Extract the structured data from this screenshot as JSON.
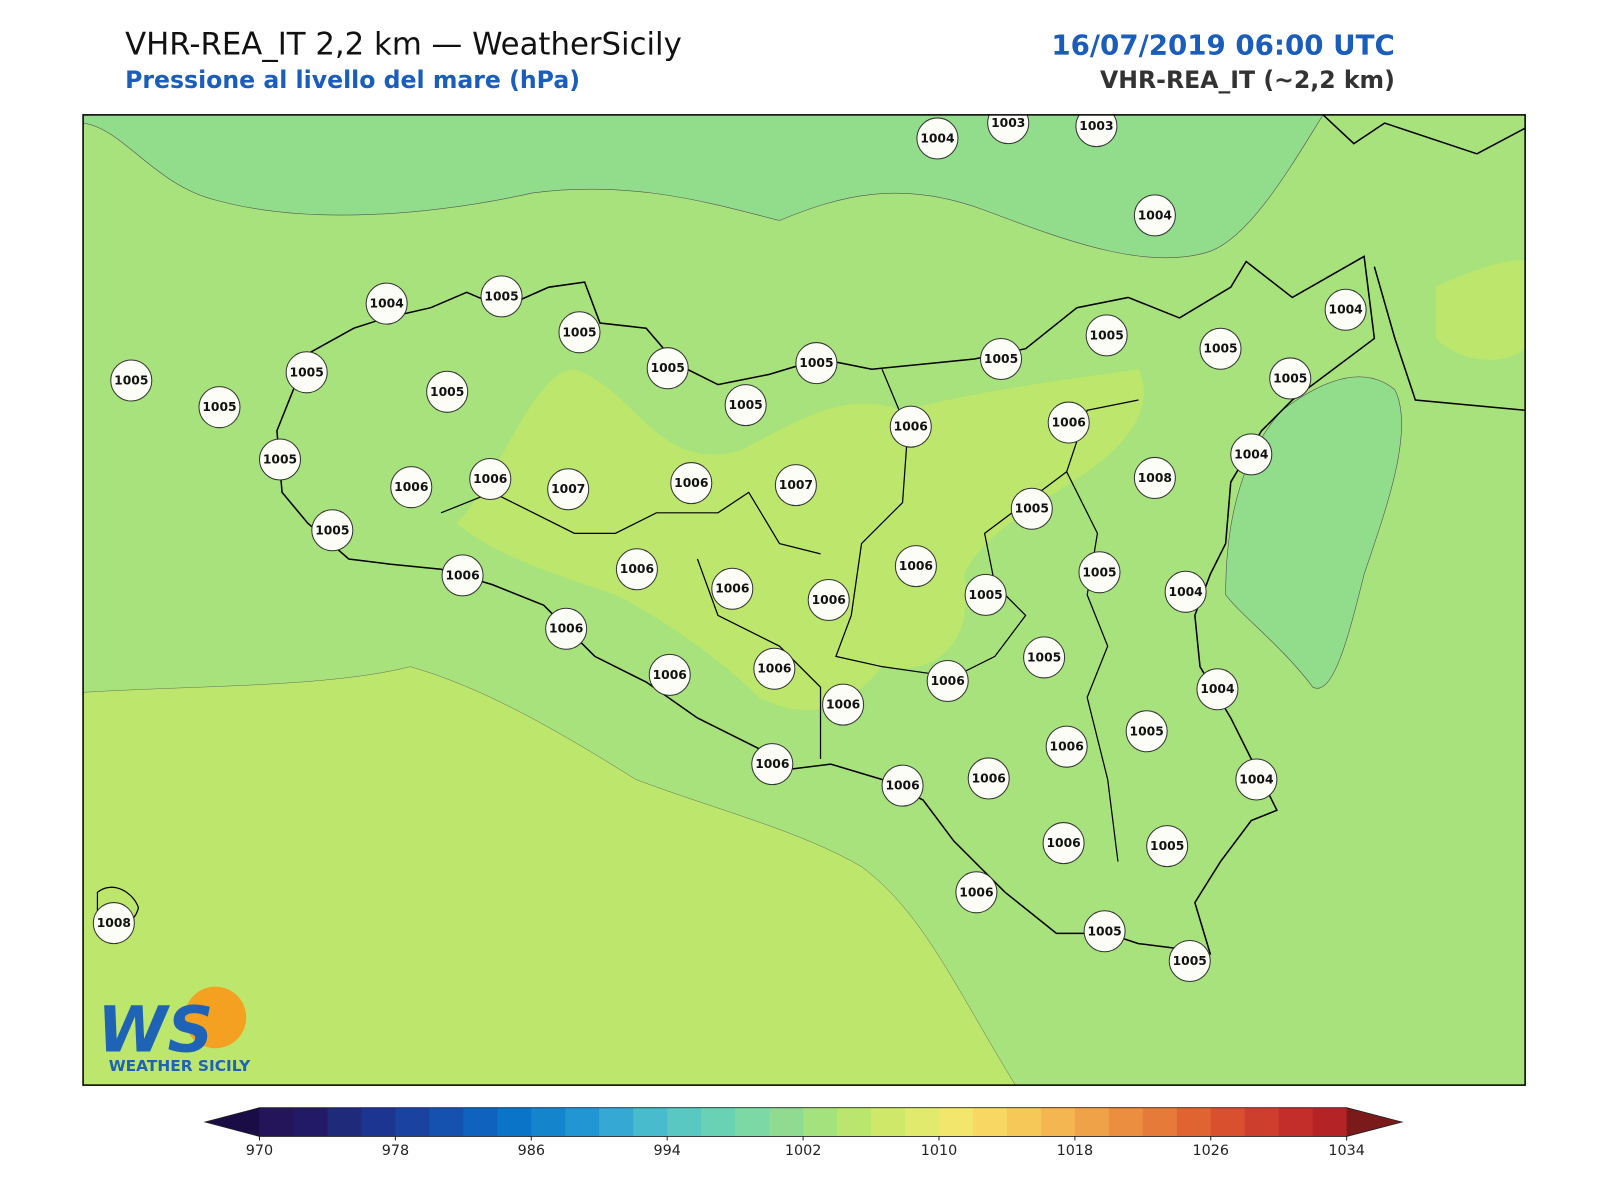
{
  "header": {
    "title": "VHR-REA_IT 2,2 km — WeatherSicily",
    "subtitle": "Pressione al livello del mare (hPa)",
    "date": "16/07/2019 06:00 UTC",
    "model": "VHR-REA_IT (~2,2 km)"
  },
  "stations": [
    "1004",
    "1003",
    "1003",
    "1004",
    "1004",
    "1005",
    "1005",
    "1004",
    "1005",
    "1005",
    "1005",
    "1005",
    "1005",
    "1005",
    "1005",
    "1005",
    "1005",
    "1005",
    "1005",
    "1006",
    "1006",
    "1005",
    "1004",
    "1006",
    "1006",
    "1007",
    "1006",
    "1007",
    "1008",
    "1005",
    "1005",
    "1006",
    "1006",
    "1006",
    "1005",
    "1006",
    "1006",
    "1005",
    "1004",
    "1006",
    "1005",
    "1006",
    "1006",
    "1006",
    "1004",
    "1006",
    "1005",
    "1006",
    "1006",
    "1006",
    "1006",
    "1004",
    "1006",
    "1005",
    "1006",
    "1005",
    "1005",
    "1008"
  ],
  "logo": {
    "mark": "WS",
    "name": "WEATHER SICILY"
  },
  "colorbar": {
    "ticks": [
      970,
      978,
      986,
      994,
      1002,
      1010,
      1018,
      1026,
      1034
    ],
    "colors": [
      "#24145a",
      "#221a66",
      "#1f2a7a",
      "#1b3590",
      "#1a42a0",
      "#1552b0",
      "#0f63bf",
      "#0a74c8",
      "#1484cc",
      "#2296d2",
      "#35a8d4",
      "#48bccc",
      "#5ac8c2",
      "#6ad2b4",
      "#7cd8a4",
      "#8fdc90",
      "#a3e27c",
      "#bbe66e",
      "#d0e86a",
      "#e2ea6e",
      "#f2e66c",
      "#f8d862",
      "#f6c858",
      "#f4b650",
      "#f0a248",
      "#ec8e40",
      "#e67a38",
      "#e06432",
      "#d8502e",
      "#ce3e2c",
      "#c42e2a",
      "#b42426"
    ],
    "under": "#1a0d45",
    "over": "#7a1a1a"
  }
}
